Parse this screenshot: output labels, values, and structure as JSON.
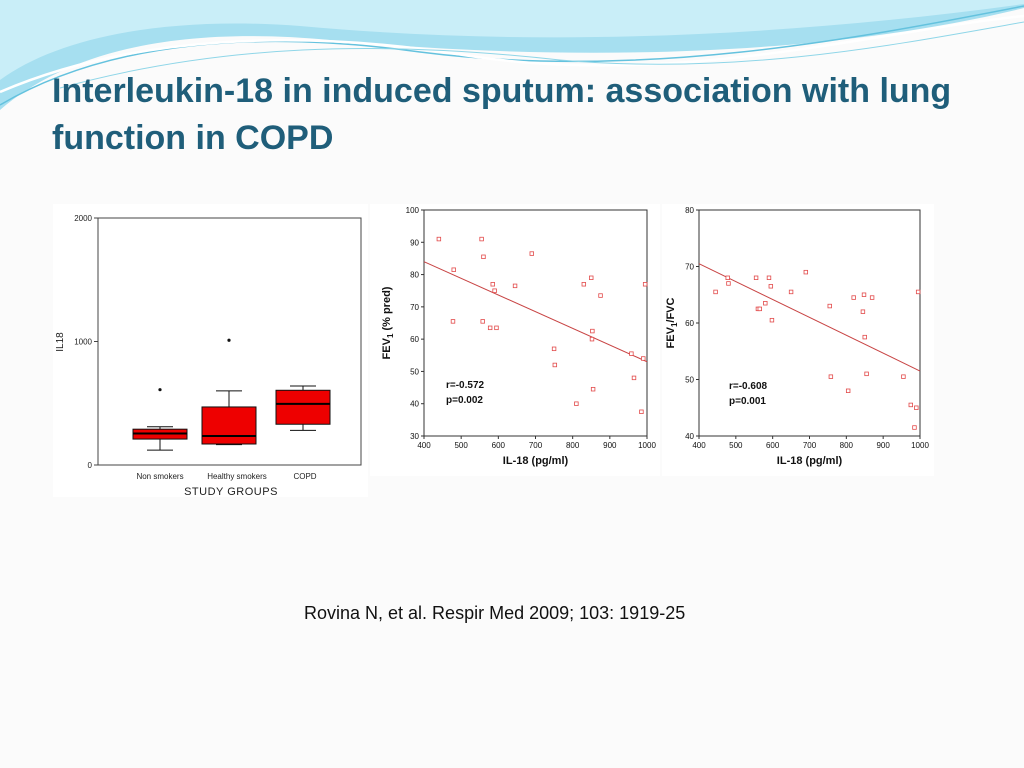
{
  "slide": {
    "title": "Interleukin-18 in induced sputum: association with lung function in COPD",
    "citation": "Rovina N, et al. Respir Med 2009; 103: 1919-25"
  },
  "colors": {
    "title": "#1f5e7a",
    "box_fill": "#ee0000",
    "marker": "#e24a4a",
    "trend_line": "#c84444",
    "wave": "#8fd6e8"
  },
  "chart_data": [
    {
      "type": "box",
      "ylabel": "IL18",
      "xlabel": "STUDY GROUPS",
      "categories": [
        "Non smokers",
        "Healthy smokers",
        "COPD"
      ],
      "ylim": [
        0,
        2000
      ],
      "yticks": [
        "0",
        "1000",
        "2000"
      ],
      "boxes": [
        {
          "min": 120,
          "q1": 210,
          "median": 255,
          "q3": 290,
          "max": 310,
          "outliers": [
            610
          ]
        },
        {
          "min": 165,
          "q1": 170,
          "median": 235,
          "q3": 470,
          "max": 600,
          "outliers": [
            1010
          ]
        },
        {
          "min": 280,
          "q1": 330,
          "median": 495,
          "q3": 605,
          "max": 640,
          "outliers": []
        }
      ]
    },
    {
      "type": "scatter",
      "xlabel": "IL-18 (pg/ml)",
      "ylabel": "FEV1 (% pred)",
      "ylabel_main": "FEV",
      "ylabel_sub": "1",
      "ylabel_rest": " (% pred)",
      "xlim": [
        400,
        1000
      ],
      "ylim": [
        30,
        100
      ],
      "xticks": [
        "400",
        "500",
        "600",
        "700",
        "800",
        "900",
        "1000"
      ],
      "yticks": [
        "30",
        "40",
        "50",
        "60",
        "70",
        "80",
        "90",
        "100"
      ],
      "annotation_r": "r=-0.572",
      "annotation_p": "p=0.002",
      "trend": [
        [
          400,
          84
        ],
        [
          1000,
          53
        ]
      ],
      "points": [
        [
          440,
          91
        ],
        [
          480,
          81.5
        ],
        [
          478,
          65.5
        ],
        [
          555,
          91
        ],
        [
          560,
          85.5
        ],
        [
          558,
          65.5
        ],
        [
          585,
          77
        ],
        [
          590,
          75
        ],
        [
          578,
          63.5
        ],
        [
          595,
          63.5
        ],
        [
          645,
          76.5
        ],
        [
          690,
          86.5
        ],
        [
          750,
          57
        ],
        [
          752,
          52
        ],
        [
          810,
          40
        ],
        [
          830,
          77
        ],
        [
          850,
          79
        ],
        [
          853,
          62.5
        ],
        [
          852,
          60
        ],
        [
          855,
          44.5
        ],
        [
          875,
          73.5
        ],
        [
          958,
          55.5
        ],
        [
          965,
          48
        ],
        [
          985,
          37.5
        ],
        [
          990,
          54
        ],
        [
          995,
          77
        ]
      ]
    },
    {
      "type": "scatter",
      "xlabel": "IL-18 (pg/ml)",
      "ylabel": "FEV1/FVC",
      "ylabel_main": "FEV",
      "ylabel_sub": "1",
      "ylabel_rest": "/FVC",
      "xlim": [
        400,
        1000
      ],
      "ylim": [
        40,
        80
      ],
      "xticks": [
        "400",
        "500",
        "600",
        "700",
        "800",
        "900",
        "1000"
      ],
      "yticks": [
        "40",
        "50",
        "60",
        "70",
        "80"
      ],
      "annotation_r": "r=-0.608",
      "annotation_p": "p=0.001",
      "trend": [
        [
          400,
          70.5
        ],
        [
          1000,
          51.5
        ]
      ],
      "points": [
        [
          445,
          65.5
        ],
        [
          478,
          68
        ],
        [
          480,
          67
        ],
        [
          555,
          68
        ],
        [
          560,
          62.5
        ],
        [
          565,
          62.5
        ],
        [
          580,
          63.5
        ],
        [
          590,
          68
        ],
        [
          595,
          66.5
        ],
        [
          598,
          60.5
        ],
        [
          650,
          65.5
        ],
        [
          690,
          69
        ],
        [
          755,
          63
        ],
        [
          758,
          50.5
        ],
        [
          805,
          48
        ],
        [
          820,
          64.5
        ],
        [
          845,
          62
        ],
        [
          848,
          65
        ],
        [
          850,
          57.5
        ],
        [
          855,
          51
        ],
        [
          870,
          64.5
        ],
        [
          955,
          50.5
        ],
        [
          975,
          45.5
        ],
        [
          985,
          41.5
        ],
        [
          990,
          45
        ],
        [
          995,
          65.5
        ]
      ]
    }
  ]
}
